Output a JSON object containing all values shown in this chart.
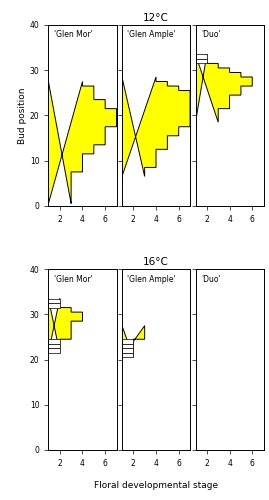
{
  "title_top": "12°C",
  "title_bottom": "16°C",
  "ylabel": "Bud position",
  "xlabel": "Floral developmental stage",
  "cultivars": [
    "'Glen Mor'",
    "'Glen Ample'",
    "'Duo'"
  ],
  "ylim": [
    0,
    40
  ],
  "xlim": [
    1,
    7
  ],
  "xticks": [
    2,
    4,
    6
  ],
  "yticks": [
    0,
    10,
    20,
    30,
    40
  ],
  "top_glen_mor": [
    {
      "stage": 2,
      "bud_lo": 1,
      "bud_hi": 27
    },
    {
      "stage": 3,
      "bud_lo": 8,
      "bud_hi": 27
    },
    {
      "stage": 4,
      "bud_lo": 12,
      "bud_hi": 26
    },
    {
      "stage": 5,
      "bud_lo": 14,
      "bud_hi": 23
    },
    {
      "stage": 6,
      "bud_lo": 18,
      "bud_hi": 21
    },
    {
      "stage": 1,
      "bud_lo": 4,
      "bud_hi": 5
    }
  ],
  "top_glen_ample": [
    {
      "stage": 2,
      "bud_lo": 7,
      "bud_hi": 28
    },
    {
      "stage": 3,
      "bud_lo": 9,
      "bud_hi": 28
    },
    {
      "stage": 4,
      "bud_lo": 13,
      "bud_hi": 27
    },
    {
      "stage": 5,
      "bud_lo": 16,
      "bud_hi": 26
    },
    {
      "stage": 6,
      "bud_lo": 18,
      "bud_hi": 25
    }
  ],
  "top_duo": [
    {
      "stage": 1,
      "bud_lo": 19,
      "bud_hi": 33
    },
    {
      "stage": 2,
      "bud_lo": 19,
      "bud_hi": 31
    },
    {
      "stage": 3,
      "bud_lo": 22,
      "bud_hi": 30
    },
    {
      "stage": 4,
      "bud_lo": 25,
      "bud_hi": 29
    },
    {
      "stage": 5,
      "bud_lo": 27,
      "bud_hi": 28
    }
  ],
  "bot_glen_mor": [
    {
      "stage": 1,
      "bud_lo": 22,
      "bud_hi": 33
    },
    {
      "stage": 2,
      "bud_lo": 25,
      "bud_hi": 31
    },
    {
      "stage": 3,
      "bud_lo": 29,
      "bud_hi": 30
    }
  ],
  "bot_glen_ample": [
    {
      "stage": 1,
      "bud_lo": 21,
      "bud_hi": 27
    },
    {
      "stage": 2,
      "bud_lo": 25,
      "bud_hi": 27
    }
  ],
  "bot_duo": [],
  "yellow_color": "#FFFF00",
  "edge_color": "#000000",
  "white_color": "#FFFFFF"
}
